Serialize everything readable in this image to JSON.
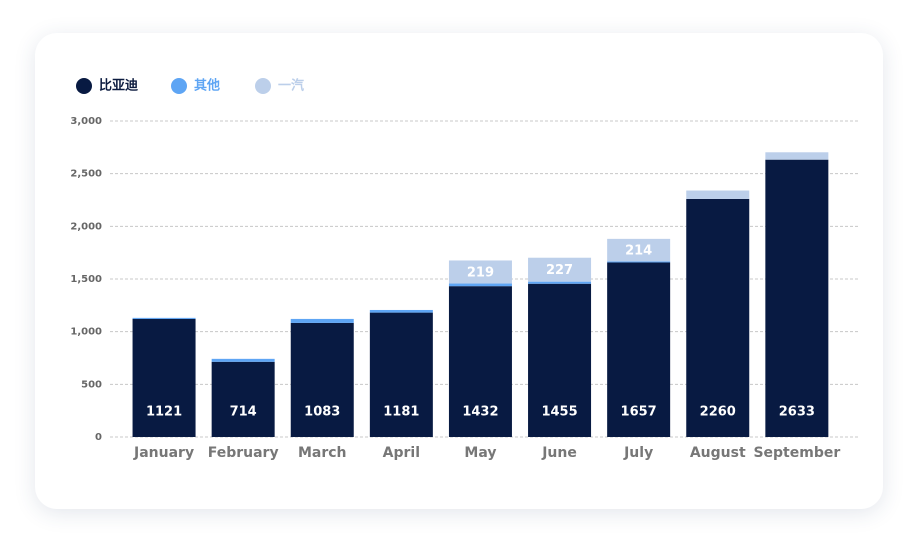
{
  "chart_data": {
    "type": "stacked-bar",
    "categories": [
      "January",
      "February",
      "March",
      "April",
      "May",
      "June",
      "July",
      "August",
      "September"
    ],
    "series": [
      {
        "name": "比亚迪",
        "color": "#081a42",
        "values": [
          1121,
          714,
          1083,
          1181,
          1432,
          1455,
          1657,
          2260,
          2633
        ]
      },
      {
        "name": "其他",
        "color": "#5ea5f4",
        "values": [
          10,
          28,
          38,
          25,
          25,
          20,
          10,
          0,
          0
        ]
      },
      {
        "name": "一汽",
        "color": "#bccfea",
        "values": [
          0,
          0,
          0,
          0,
          219,
          227,
          214,
          80,
          70
        ]
      }
    ],
    "ylim": [
      0,
      3000
    ],
    "yticks": [
      0,
      500,
      {
        "value": 1000,
        "label": "1,000"
      },
      {
        "value": 1500,
        "label": "1,500"
      },
      {
        "value": 2000,
        "label": "2,000"
      },
      {
        "value": 2500,
        "label": "2,500"
      },
      {
        "value": 3000,
        "label": "3,000"
      }
    ],
    "grid": true
  }
}
